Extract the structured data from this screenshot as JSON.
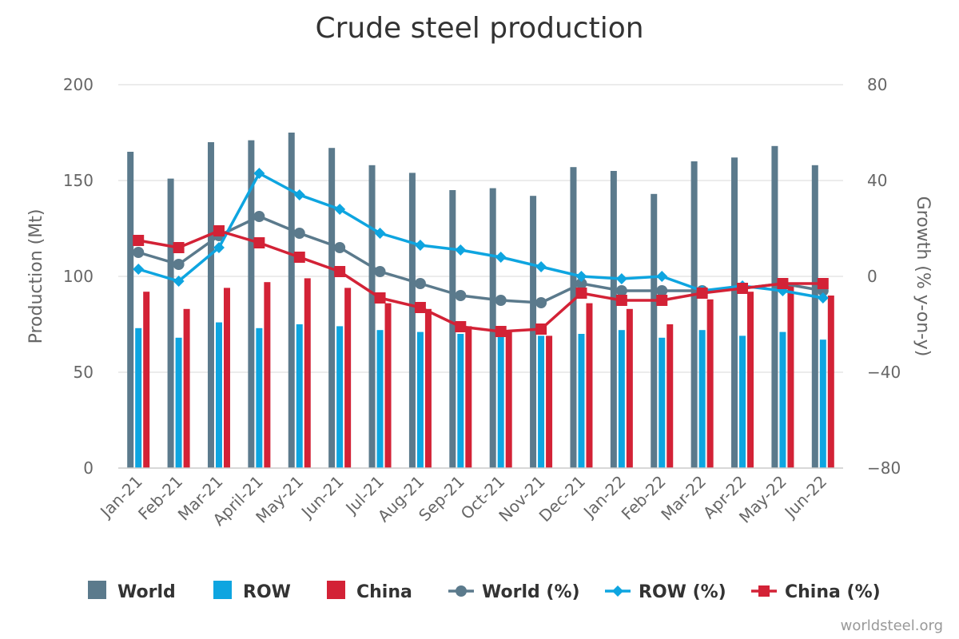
{
  "chart_data": {
    "type": "bar",
    "title": "Crude steel production",
    "ylabel": "Production (Mt)",
    "y2label": "Growth (% y-on-y)",
    "ylim": [
      0,
      200
    ],
    "y2lim": [
      -80,
      80
    ],
    "yticks": [
      "0",
      "50",
      "100",
      "150",
      "200"
    ],
    "y2ticks": [
      "−80",
      "−40",
      "0",
      "40",
      "80"
    ],
    "grid": true,
    "legend_position": "bottom",
    "categories": [
      "Jan-21",
      "Feb-21",
      "Mar-21",
      "April-21",
      "May-21",
      "Jun-21",
      "Jul-21",
      "Aug-21",
      "Sep-21",
      "Oct-21",
      "Nov-21",
      "Dec-21",
      "Jan-22",
      "Feb-22",
      "Mar-22",
      "Apr-22",
      "May-22",
      "Jun-22"
    ],
    "bar_series": [
      {
        "name": "World",
        "color": "#5b7a8c",
        "values": [
          165,
          151,
          170,
          171,
          175,
          167,
          158,
          154,
          145,
          146,
          142,
          157,
          155,
          143,
          160,
          162,
          168,
          158
        ]
      },
      {
        "name": "ROW",
        "color": "#0ea5e0",
        "values": [
          73,
          68,
          76,
          73,
          75,
          74,
          72,
          71,
          70,
          69,
          69,
          70,
          72,
          68,
          72,
          69,
          71,
          67
        ]
      },
      {
        "name": "China",
        "color": "#d32236",
        "values": [
          92,
          83,
          94,
          97,
          99,
          94,
          86,
          83,
          74,
          71,
          69,
          86,
          83,
          75,
          88,
          92,
          96,
          90
        ]
      }
    ],
    "line_series": [
      {
        "name": "World (%)",
        "color": "#5b7a8c",
        "marker": "circle",
        "values": [
          10,
          5,
          17,
          25,
          18,
          12,
          2,
          -3,
          -8,
          -10,
          -11,
          -3,
          -6,
          -6,
          -6,
          -5,
          -3,
          -6
        ]
      },
      {
        "name": "ROW (%)",
        "color": "#0ea5e0",
        "marker": "diamond",
        "values": [
          3,
          -2,
          12,
          43,
          34,
          28,
          18,
          13,
          11,
          8,
          4,
          0,
          -1,
          0,
          -6,
          -4,
          -6,
          -9
        ]
      },
      {
        "name": "China (%)",
        "color": "#d32236",
        "marker": "square",
        "values": [
          15,
          12,
          19,
          14,
          8,
          2,
          -9,
          -13,
          -21,
          -23,
          -22,
          -7,
          -10,
          -10,
          -7,
          -5,
          -3,
          -3
        ]
      }
    ],
    "credit": "worldsteel.org"
  }
}
